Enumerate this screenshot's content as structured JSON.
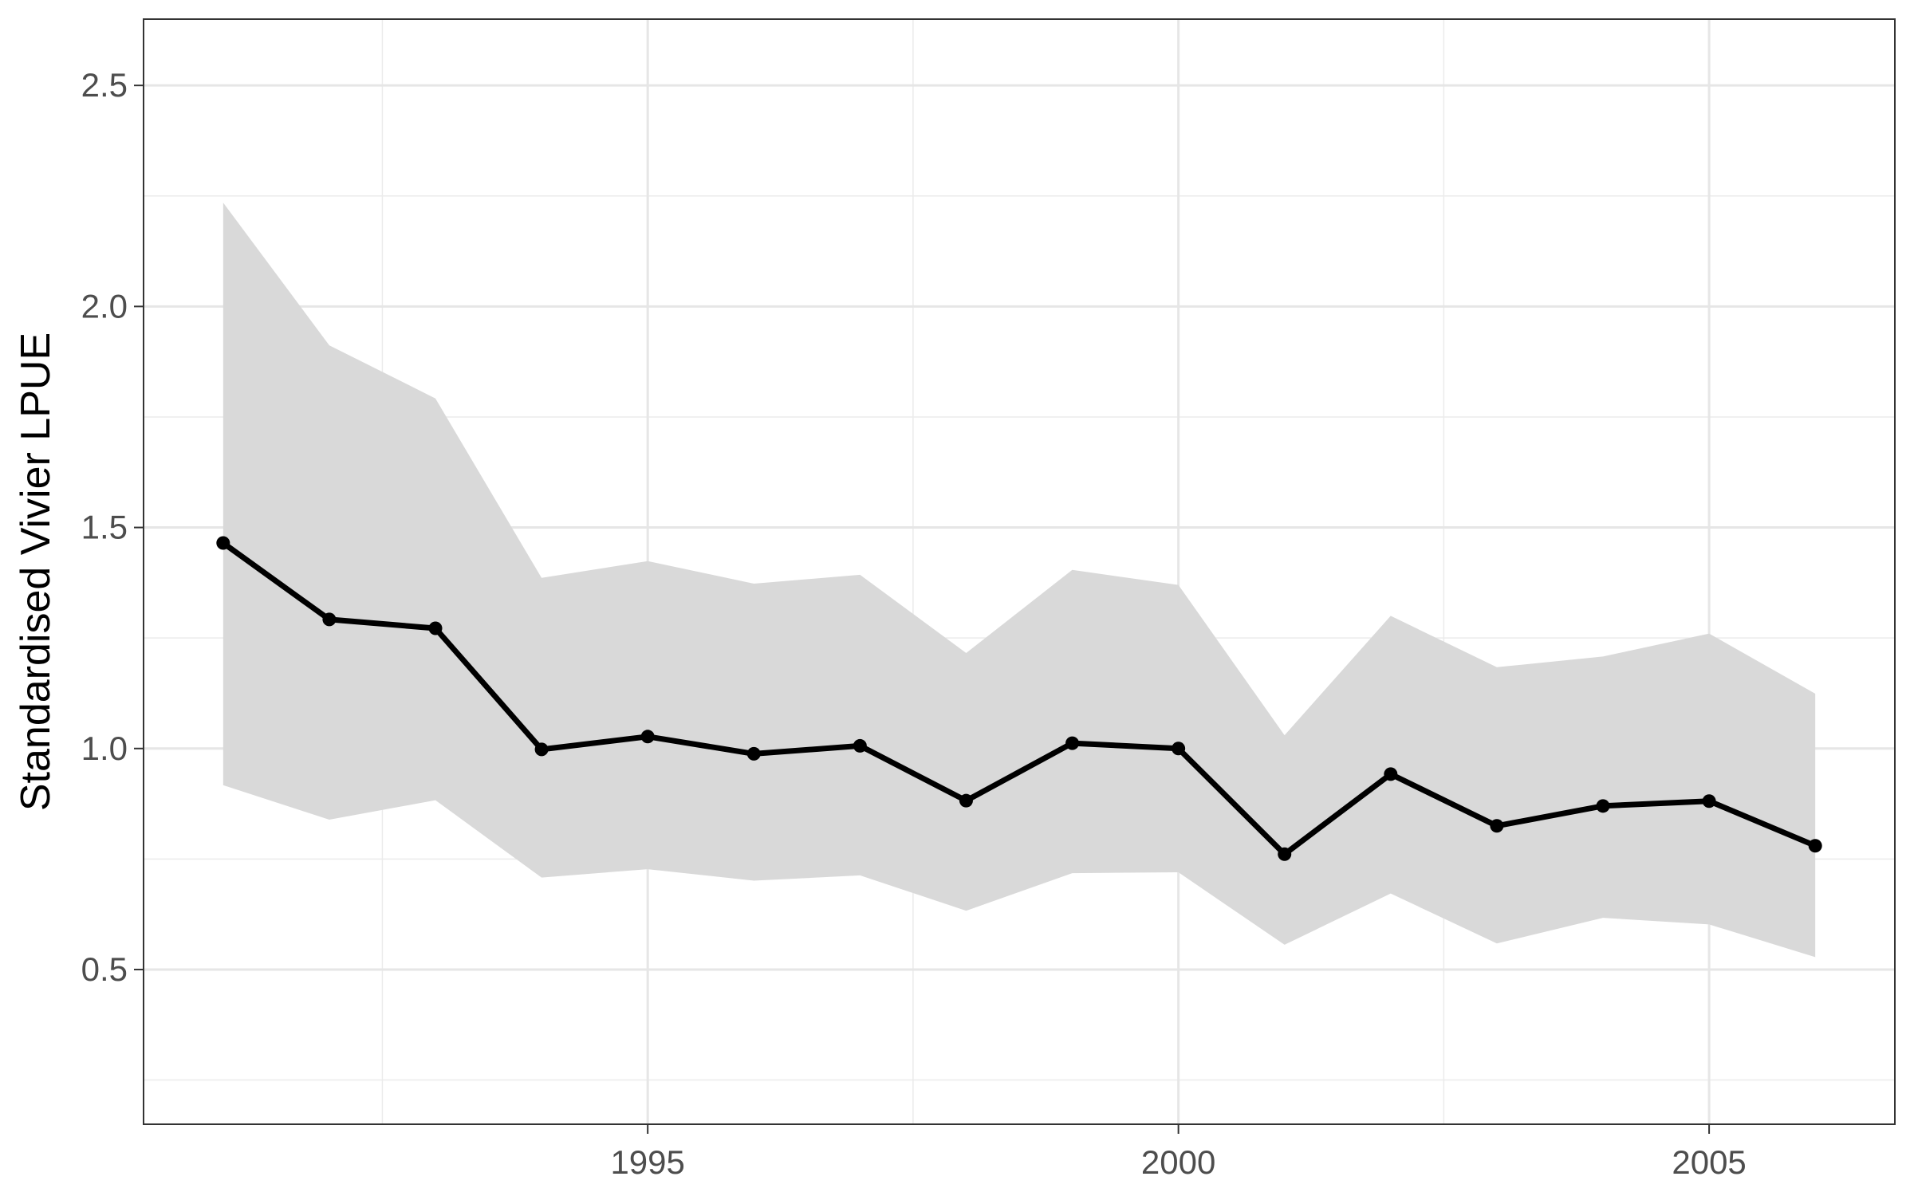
{
  "chart_data": {
    "type": "line",
    "ylabel": "Standardised Vivier LPUE",
    "xlabel": "",
    "xlim": [
      1990.25,
      2006.75
    ],
    "ylim": [
      0.15,
      2.65
    ],
    "x_ticks": [
      1995,
      2000,
      2005
    ],
    "y_ticks": [
      0.5,
      1.0,
      1.5,
      2.0,
      2.5
    ],
    "y_tick_labels": [
      "0.5",
      "1.0",
      "1.5",
      "2.0",
      "2.5"
    ],
    "x_tick_labels": [
      "1995",
      "2000",
      "2005"
    ],
    "grid": true,
    "legend": "none",
    "x": [
      1991,
      1992,
      1993,
      1994,
      1995,
      1996,
      1997,
      1998,
      1999,
      2000,
      2001,
      2002,
      2003,
      2004,
      2005,
      2006
    ],
    "series": [
      {
        "values": [
          1.465,
          1.292,
          1.272,
          0.998,
          1.027,
          0.988,
          1.006,
          0.882,
          1.012,
          1.0,
          0.761,
          0.942,
          0.825,
          0.87,
          0.881,
          0.78
        ],
        "lower": [
          0.917,
          0.839,
          0.883,
          0.708,
          0.727,
          0.701,
          0.713,
          0.633,
          0.718,
          0.72,
          0.556,
          0.672,
          0.559,
          0.617,
          0.602,
          0.528
        ],
        "upper": [
          2.235,
          1.912,
          1.792,
          1.386,
          1.424,
          1.373,
          1.393,
          1.216,
          1.404,
          1.37,
          1.03,
          1.3,
          1.184,
          1.208,
          1.26,
          1.124
        ],
        "color": "#000000",
        "band_color": "#d9d9d9"
      }
    ]
  }
}
